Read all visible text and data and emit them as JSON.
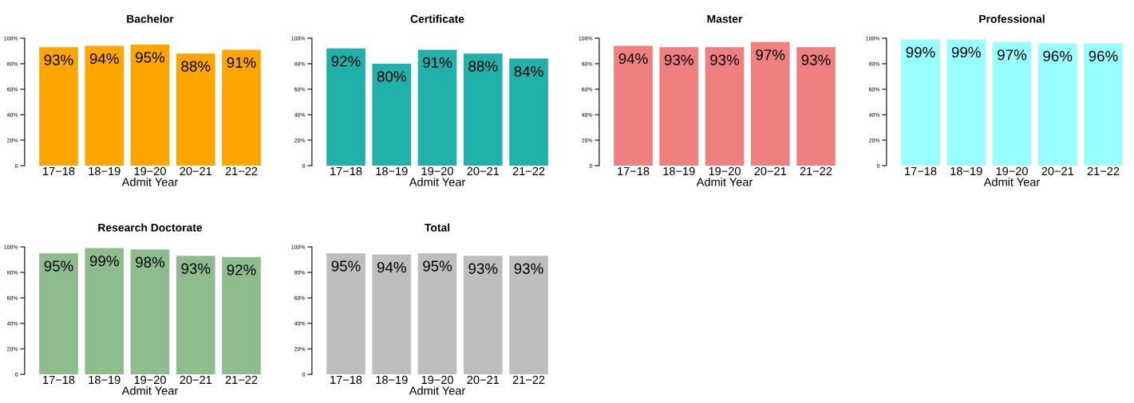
{
  "chart_data": [
    {
      "type": "bar",
      "title": "Bachelor",
      "xlabel": "Admit Year",
      "categories": [
        "17−18",
        "18−19",
        "19−20",
        "20−21",
        "21−22"
      ],
      "values": [
        93,
        94,
        95,
        88,
        91
      ],
      "value_labels": [
        "93%",
        "94%",
        "95%",
        "88%",
        "91%"
      ],
      "color": "#ffa500",
      "ylim": [
        0,
        100
      ],
      "yticks": [
        0,
        {
          "value": 20,
          "label": "20%"
        },
        {
          "value": 40,
          "label": "40%"
        },
        {
          "value": 60,
          "label": "60%"
        },
        {
          "value": 80,
          "label": "80%"
        },
        {
          "value": 100,
          "label": "100%"
        }
      ],
      "grid": false,
      "legend": false
    },
    {
      "type": "bar",
      "title": "Certificate",
      "xlabel": "Admit Year",
      "categories": [
        "17−18",
        "18−19",
        "19−20",
        "20−21",
        "21−22"
      ],
      "values": [
        92,
        80,
        91,
        88,
        84
      ],
      "value_labels": [
        "92%",
        "80%",
        "91%",
        "88%",
        "84%"
      ],
      "color": "#20b2aa",
      "ylim": [
        0,
        100
      ],
      "yticks": [
        0,
        {
          "value": 20,
          "label": "20%"
        },
        {
          "value": 40,
          "label": "40%"
        },
        {
          "value": 60,
          "label": "60%"
        },
        {
          "value": 80,
          "label": "80%"
        },
        {
          "value": 100,
          "label": "100%"
        }
      ],
      "grid": false,
      "legend": false
    },
    {
      "type": "bar",
      "title": "Master",
      "xlabel": "Admit Year",
      "categories": [
        "17−18",
        "18−19",
        "19−20",
        "20−21",
        "21−22"
      ],
      "values": [
        94,
        93,
        93,
        97,
        93
      ],
      "value_labels": [
        "94%",
        "93%",
        "93%",
        "97%",
        "93%"
      ],
      "color": "#f08080",
      "ylim": [
        0,
        100
      ],
      "yticks": [
        0,
        {
          "value": 20,
          "label": "20%"
        },
        {
          "value": 40,
          "label": "40%"
        },
        {
          "value": 60,
          "label": "60%"
        },
        {
          "value": 80,
          "label": "80%"
        },
        {
          "value": 100,
          "label": "100%"
        }
      ],
      "grid": false,
      "legend": false
    },
    {
      "type": "bar",
      "title": "Professional",
      "xlabel": "Admit Year",
      "categories": [
        "17−18",
        "18−19",
        "19−20",
        "20−21",
        "21−22"
      ],
      "values": [
        99,
        99,
        97,
        96,
        96
      ],
      "value_labels": [
        "99%",
        "99%",
        "97%",
        "96%",
        "96%"
      ],
      "color": "#97ffff",
      "ylim": [
        0,
        100
      ],
      "yticks": [
        0,
        {
          "value": 20,
          "label": "20%"
        },
        {
          "value": 40,
          "label": "40%"
        },
        {
          "value": 60,
          "label": "60%"
        },
        {
          "value": 80,
          "label": "80%"
        },
        {
          "value": 100,
          "label": "100%"
        }
      ],
      "grid": false,
      "legend": false
    },
    {
      "type": "bar",
      "title": "Research Doctorate",
      "xlabel": "Admit Year",
      "categories": [
        "17−18",
        "18−19",
        "19−20",
        "20−21",
        "21−22"
      ],
      "values": [
        95,
        99,
        98,
        93,
        92
      ],
      "value_labels": [
        "95%",
        "99%",
        "98%",
        "93%",
        "92%"
      ],
      "color": "#8fbc8f",
      "ylim": [
        0,
        100
      ],
      "yticks": [
        0,
        {
          "value": 20,
          "label": "20%"
        },
        {
          "value": 40,
          "label": "40%"
        },
        {
          "value": 60,
          "label": "60%"
        },
        {
          "value": 80,
          "label": "80%"
        },
        {
          "value": 100,
          "label": "100%"
        }
      ],
      "grid": false,
      "legend": false
    },
    {
      "type": "bar",
      "title": "Total",
      "xlabel": "Admit Year",
      "categories": [
        "17−18",
        "18−19",
        "19−20",
        "20−21",
        "21−22"
      ],
      "values": [
        95,
        94,
        95,
        93,
        93
      ],
      "value_labels": [
        "95%",
        "94%",
        "95%",
        "93%",
        "93%"
      ],
      "color": "#bebebe",
      "ylim": [
        0,
        100
      ],
      "yticks": [
        0,
        {
          "value": 20,
          "label": "20%"
        },
        {
          "value": 40,
          "label": "40%"
        },
        {
          "value": 60,
          "label": "60%"
        },
        {
          "value": 80,
          "label": "80%"
        },
        {
          "value": 100,
          "label": "100%"
        }
      ],
      "grid": false,
      "legend": false
    }
  ]
}
